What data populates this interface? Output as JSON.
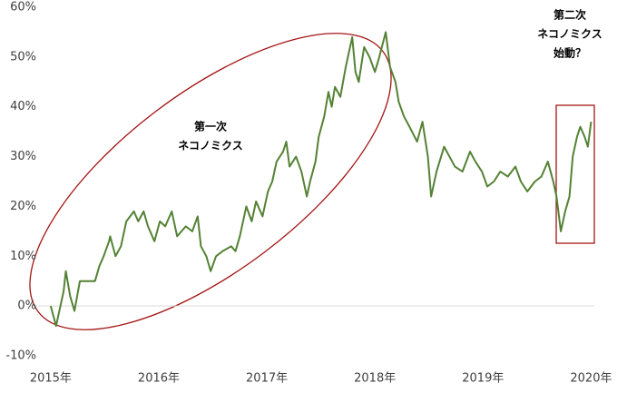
{
  "chart_data": {
    "type": "line",
    "annotations": [
      [
        "第一次",
        "ネコノミクス"
      ],
      [
        "第二次",
        "ネコノミクス",
        "始動？"
      ]
    ],
    "x": [
      2015.0,
      2015.05,
      2015.12,
      2015.14,
      2015.18,
      2015.22,
      2015.27,
      2015.33,
      2015.41,
      2015.45,
      2015.49,
      2015.54,
      2015.55,
      2015.6,
      2015.65,
      2015.7,
      2015.77,
      2015.81,
      2015.86,
      2015.9,
      2015.96,
      2016.01,
      2016.06,
      2016.12,
      2016.17,
      2016.25,
      2016.31,
      2016.36,
      2016.39,
      2016.44,
      2016.48,
      2016.53,
      2016.59,
      2016.67,
      2016.71,
      2016.75,
      2016.81,
      2016.86,
      2016.9,
      2016.96,
      2017.01,
      2017.05,
      2017.09,
      2017.15,
      2017.18,
      2017.21,
      2017.27,
      2017.32,
      2017.37,
      2017.4,
      2017.45,
      2017.48,
      2017.53,
      2017.57,
      2017.6,
      2017.63,
      2017.68,
      2017.73,
      2017.79,
      2017.82,
      2017.85,
      2017.9,
      2017.95,
      2018.0,
      2018.04,
      2018.1,
      2018.14,
      2018.19,
      2018.22,
      2018.27,
      2018.32,
      2018.39,
      2018.44,
      2018.49,
      2018.52,
      2018.57,
      2018.64,
      2018.69,
      2018.74,
      2018.81,
      2018.88,
      2018.93,
      2018.99,
      2019.04,
      2019.1,
      2019.16,
      2019.23,
      2019.3,
      2019.35,
      2019.41,
      2019.48,
      2019.54,
      2019.6,
      2019.65,
      2019.68,
      2019.72,
      2019.76,
      2019.8,
      2019.83,
      2019.87,
      2019.9,
      2019.94,
      2019.97,
      2020.0
    ],
    "series": [
      {
        "name": "ネコノミクス",
        "color": "#548235",
        "values": [
          0,
          -4,
          3,
          7,
          2,
          -1,
          5,
          5,
          5,
          8,
          10,
          13,
          14,
          10,
          12,
          17,
          19,
          17,
          19,
          16,
          13,
          17,
          16,
          19,
          14,
          16,
          15,
          18,
          12,
          10,
          7,
          10,
          11,
          12,
          11,
          14,
          20,
          17,
          21,
          18,
          23,
          25,
          29,
          31,
          33,
          28,
          30,
          27,
          22,
          25,
          29,
          34,
          38,
          43,
          40,
          44,
          42,
          48,
          54,
          47,
          45,
          52,
          50,
          47,
          50,
          55,
          48,
          45,
          41,
          38,
          36,
          33,
          37,
          30,
          22,
          27,
          32,
          30,
          28,
          27,
          31,
          29,
          27,
          24,
          25,
          27,
          26,
          28,
          25,
          23,
          25,
          26,
          29,
          25,
          22,
          15,
          19,
          22,
          30,
          34,
          36,
          34,
          32,
          37
        ]
      }
    ],
    "xlim": [
      2014.85,
      2020.03
    ],
    "xticks": [
      {
        "value": 2015,
        "label": "2015年"
      },
      {
        "value": 2016,
        "label": "2016年"
      },
      {
        "value": 2017,
        "label": "2017年"
      },
      {
        "value": 2018,
        "label": "2018年"
      },
      {
        "value": 2019,
        "label": "2019年"
      },
      {
        "value": 2020,
        "label": "2020年"
      }
    ],
    "ylim": [
      -10,
      60
    ],
    "yticks": [
      {
        "value": -10,
        "label": "-10%"
      },
      {
        "value": 0,
        "label": "0%"
      },
      {
        "value": 10,
        "label": "10%"
      },
      {
        "value": 20,
        "label": "20%"
      },
      {
        "value": 30,
        "label": "30%"
      },
      {
        "value": 40,
        "label": "40%"
      },
      {
        "value": 50,
        "label": "50%"
      },
      {
        "value": 60,
        "label": "60%"
      }
    ]
  }
}
